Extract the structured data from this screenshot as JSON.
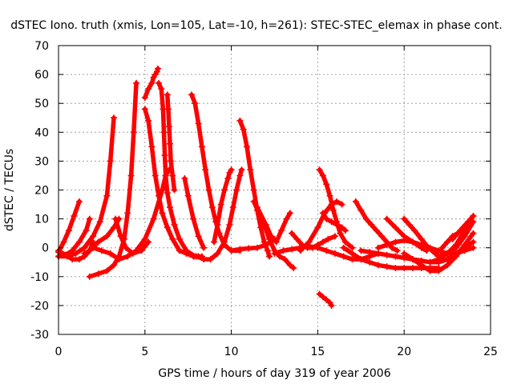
{
  "chart_data": {
    "type": "scatter",
    "title": "dSTEC Iono. truth (xmis, Lon=105, Lat=-10, h=261): STEC-STEC_elemax in phase cont.",
    "xlabel": "GPS time / hours of day 319 of year 2006",
    "ylabel": "dSTEC  / TECUs",
    "xlim": [
      0,
      25
    ],
    "ylim": [
      -30,
      70
    ],
    "xticks": [
      0,
      5,
      10,
      15,
      20,
      25
    ],
    "yticks": [
      -30,
      -20,
      -10,
      0,
      10,
      20,
      30,
      40,
      50,
      60,
      70
    ],
    "grid": true,
    "marker": "+",
    "color": "#ff0000",
    "series": [
      {
        "x": [
          0.0,
          0.3,
          0.6,
          0.9,
          1.2
        ],
        "y": [
          -1.5,
          2,
          6,
          11,
          16
        ]
      },
      {
        "x": [
          0.0,
          0.4,
          0.8,
          1.2,
          1.6,
          1.8
        ],
        "y": [
          -3,
          -2.5,
          -1,
          2,
          6,
          10
        ]
      },
      {
        "x": [
          0.0,
          0.5,
          1.0,
          1.5,
          2.0,
          2.4,
          2.8,
          3.0,
          3.2
        ],
        "y": [
          -3,
          -3,
          -2,
          0,
          4,
          9,
          18,
          30,
          45
        ]
      },
      {
        "x": [
          0.0,
          0.4,
          0.8,
          1.2,
          1.5,
          1.8,
          2.0
        ],
        "y": [
          -1,
          -2.5,
          -4,
          -4,
          -3,
          -1,
          2
        ]
      },
      {
        "x": [
          1.8,
          2.3,
          2.8,
          3.2,
          3.5,
          3.8,
          4.0,
          4.2,
          4.35,
          4.5
        ],
        "y": [
          -10,
          -9,
          -8,
          -6,
          -3,
          3,
          12,
          25,
          40,
          57
        ]
      },
      {
        "x": [
          1.5,
          1.8,
          2.3,
          2.8,
          3.2,
          3.5
        ],
        "y": [
          -2,
          -1,
          2,
          4,
          7,
          10
        ]
      },
      {
        "x": [
          3.3,
          3.6,
          3.9,
          4.3,
          4.8,
          5.2
        ],
        "y": [
          10,
          4,
          0,
          -2,
          -1,
          2
        ]
      },
      {
        "x": [
          2.0,
          2.5,
          3.0,
          3.5,
          4.0,
          4.5,
          5.0,
          5.5,
          6.0,
          6.2,
          6.4
        ],
        "y": [
          0,
          -1,
          -2,
          -4,
          -3,
          -1,
          3,
          10,
          20,
          25,
          27
        ]
      },
      {
        "x": [
          5.0,
          5.2,
          5.4,
          5.6,
          5.8,
          6.0,
          6.3,
          6.6,
          7.0,
          7.4,
          7.8,
          8.1
        ],
        "y": [
          48,
          44,
          35,
          25,
          18,
          12,
          7,
          3,
          -1,
          -2,
          -3,
          -3
        ]
      },
      {
        "x": [
          5.0,
          5.2,
          5.4,
          5.5,
          5.6,
          5.7,
          5.75
        ],
        "y": [
          52,
          55,
          57,
          59,
          60,
          61,
          62
        ]
      },
      {
        "x": [
          5.8,
          5.95,
          6.05,
          6.1,
          6.15,
          6.2,
          6.3,
          6.45,
          6.7,
          7.0,
          7.4,
          7.9,
          8.3
        ],
        "y": [
          57,
          55,
          48,
          40,
          32,
          25,
          19,
          14,
          8,
          3,
          -1,
          -3,
          -3
        ]
      },
      {
        "x": [
          6.3,
          6.35,
          6.4,
          6.45,
          6.5,
          6.6,
          6.7
        ],
        "y": [
          53,
          48,
          42,
          36,
          30,
          25,
          20
        ]
      },
      {
        "x": [
          7.3,
          7.5,
          7.8,
          8.1,
          8.4
        ],
        "y": [
          24,
          18,
          10,
          4,
          0
        ]
      },
      {
        "x": [
          7.7,
          7.9,
          8.1,
          8.3,
          8.5,
          8.7,
          8.9,
          9.1,
          9.3,
          9.6,
          10.0,
          10.5
        ],
        "y": [
          53,
          50,
          43,
          35,
          27,
          20,
          14,
          9,
          5,
          1,
          -1,
          -1
        ]
      },
      {
        "x": [
          9.0,
          9.2,
          9.4,
          9.6,
          9.8,
          9.9,
          10.0
        ],
        "y": [
          2,
          8,
          15,
          20,
          24,
          26,
          27
        ]
      },
      {
        "x": [
          8.0,
          8.4,
          8.8,
          9.2,
          9.6,
          9.9,
          10.1,
          10.3,
          10.5,
          10.6
        ],
        "y": [
          -3,
          -4,
          -4,
          -2,
          2,
          8,
          14,
          20,
          25,
          27
        ]
      },
      {
        "x": [
          10.5,
          10.7,
          10.9,
          11.1,
          11.3,
          11.5,
          11.7,
          11.9,
          12.1,
          12.2
        ],
        "y": [
          44,
          41,
          35,
          27,
          20,
          13,
          7,
          2,
          -1,
          -3
        ]
      },
      {
        "x": [
          11.3,
          11.6,
          11.9,
          12.2,
          12.5,
          12.8,
          13.1,
          13.4,
          13.6
        ],
        "y": [
          16,
          12,
          8,
          3,
          -1,
          -3,
          -4,
          -6,
          -7
        ]
      },
      {
        "x": [
          10.0,
          10.5,
          11.0,
          11.5,
          12.0,
          12.5
        ],
        "y": [
          -1,
          -0.5,
          -0.2,
          0,
          1,
          3
        ]
      },
      {
        "x": [
          11.5,
          12.0,
          12.3,
          12.6,
          12.9,
          13.2,
          13.4
        ],
        "y": [
          14,
          8,
          4,
          2,
          6,
          10,
          12
        ]
      },
      {
        "x": [
          12.5,
          13.0,
          13.5,
          14.0,
          14.5,
          15.0,
          15.5,
          16.0,
          16.5,
          17.0,
          17.5,
          18.0,
          18.5
        ],
        "y": [
          -2,
          -1,
          -0.5,
          0,
          0.5,
          0,
          -1,
          -2,
          -3,
          -4,
          -4,
          -3,
          -2
        ]
      },
      {
        "x": [
          13.5,
          13.8,
          14.1,
          14.4,
          14.7,
          15.0,
          15.3,
          15.6,
          16.0
        ],
        "y": [
          5,
          3,
          1,
          0,
          0,
          1,
          2,
          3,
          4
        ]
      },
      {
        "x": [
          15.1,
          15.3,
          15.5,
          15.7,
          15.9,
          16.1,
          16.3,
          16.6,
          17.0
        ],
        "y": [
          27,
          25,
          22,
          18,
          13,
          9,
          5,
          2,
          0
        ]
      },
      {
        "x": [
          14.0,
          14.5,
          15.0,
          15.4,
          15.8,
          16.1,
          16.4
        ],
        "y": [
          -1,
          2,
          7,
          12,
          15,
          16,
          15
        ]
      },
      {
        "x": [
          15.1,
          15.3,
          15.5,
          15.7,
          15.8
        ],
        "y": [
          -16,
          -17,
          -18,
          -19,
          -20
        ]
      },
      {
        "x": [
          15.3,
          15.5,
          15.8,
          16.1,
          16.4,
          16.6
        ],
        "y": [
          12,
          10,
          9,
          8,
          7,
          6
        ]
      },
      {
        "x": [
          17.2,
          17.5,
          17.8,
          18.1,
          18.4,
          18.7,
          19.0,
          19.3,
          19.6
        ],
        "y": [
          16,
          13,
          10,
          8,
          6,
          4,
          2,
          0,
          -1
        ]
      },
      {
        "x": [
          16.5,
          17.0,
          17.5,
          18.0,
          18.5,
          19.0,
          19.5,
          20.0,
          20.5,
          21.0,
          21.5,
          22.0
        ],
        "y": [
          0,
          -2,
          -4,
          -5,
          -6,
          -6.5,
          -7,
          -7,
          -7,
          -7,
          -7,
          -7
        ]
      },
      {
        "x": [
          17.5,
          18.0,
          18.5,
          19.0,
          19.5,
          20.0,
          20.5
        ],
        "y": [
          -1,
          -1.5,
          -2,
          -2.5,
          -3,
          -3.5,
          -4
        ]
      },
      {
        "x": [
          19.0,
          19.5,
          20.0,
          20.5,
          21.0,
          21.3
        ],
        "y": [
          10,
          7,
          4,
          2,
          0,
          -1
        ]
      },
      {
        "x": [
          20.0,
          20.3,
          20.6,
          21.0,
          21.4,
          21.8,
          22.2
        ],
        "y": [
          10,
          8,
          6,
          3,
          0,
          -2,
          -4
        ]
      },
      {
        "x": [
          18.5,
          19.0,
          19.5,
          20.0,
          20.5,
          21.0,
          21.5,
          22.0,
          22.5,
          23.0,
          23.5,
          24.0
        ],
        "y": [
          0,
          1,
          2,
          2.5,
          2,
          1,
          0,
          -1,
          -2,
          -2,
          -1,
          0
        ]
      },
      {
        "x": [
          19.5,
          20.0,
          20.5,
          21.0,
          21.5,
          22.0,
          22.5,
          23.0,
          23.5,
          24.0
        ],
        "y": [
          -3,
          -3.5,
          -4,
          -4.5,
          -5,
          -5,
          -4,
          -2,
          0,
          2
        ]
      },
      {
        "x": [
          20.0,
          20.5,
          21.0,
          21.5,
          22.0,
          22.5,
          23.0,
          23.5,
          24.0
        ],
        "y": [
          -2,
          -4,
          -6,
          -8,
          -8,
          -6,
          -3,
          1,
          5
        ]
      },
      {
        "x": [
          21.5,
          22.0,
          22.5,
          23.0,
          23.5,
          24.0
        ],
        "y": [
          -5,
          -4,
          -2,
          0,
          4,
          9
        ]
      },
      {
        "x": [
          22.0,
          22.5,
          23.0,
          23.5,
          24.0
        ],
        "y": [
          -3,
          -2,
          1,
          6,
          11
        ]
      },
      {
        "x": [
          22.2,
          22.5,
          22.8,
          23.1
        ],
        "y": [
          0,
          2,
          4,
          5
        ]
      },
      {
        "x": [
          22.8,
          23.1,
          23.4,
          23.7,
          24.0
        ],
        "y": [
          3,
          5,
          7,
          9,
          11
        ]
      }
    ]
  }
}
